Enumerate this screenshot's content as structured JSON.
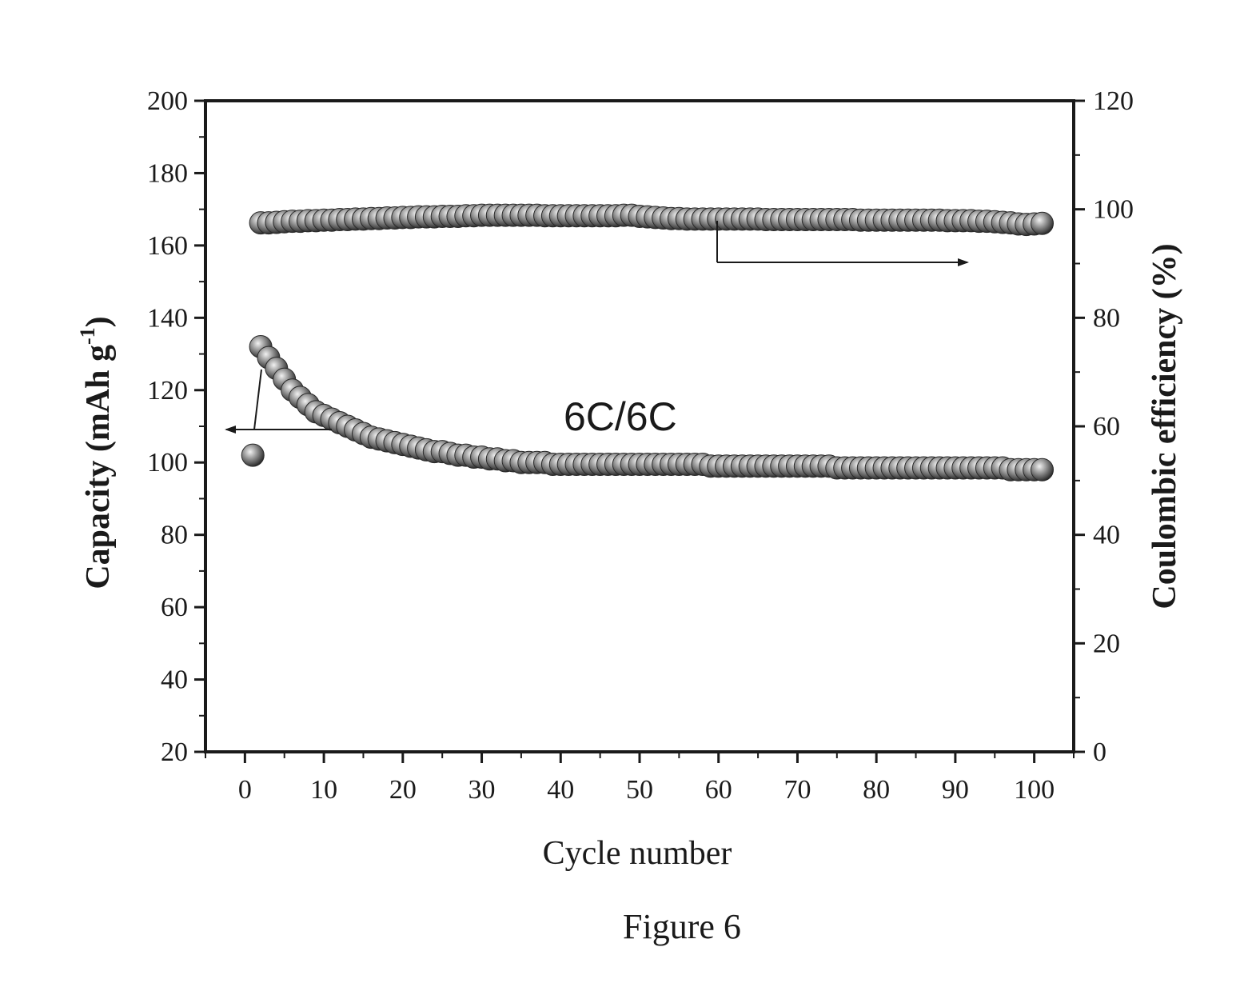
{
  "chart_data": {
    "type": "scatter",
    "xlabel": "Cycle number",
    "ylabel_left": "Capacity (mAh g",
    "ylabel_left_sup": "-1",
    "ylabel_left_close": ")",
    "ylabel_right": "Coulombic efficiency (%)",
    "xlim": [
      -5,
      105
    ],
    "ylim_left": [
      20,
      200
    ],
    "ylim_right": [
      0,
      120
    ],
    "x_ticks": [
      0,
      10,
      20,
      30,
      40,
      50,
      60,
      70,
      80,
      90,
      100
    ],
    "y_left_ticks": [
      20,
      40,
      60,
      80,
      100,
      120,
      140,
      160,
      180,
      200
    ],
    "y_right_ticks": [
      0,
      20,
      40,
      60,
      80,
      100,
      120
    ],
    "annotation": "6C/6C",
    "caption": "Figure 6",
    "marker_color": "#8a8a8a",
    "series": [
      {
        "axis": "left",
        "x": [
          2,
          3,
          4,
          5,
          6,
          7,
          8,
          9,
          10,
          11,
          12,
          13,
          14,
          15,
          16,
          17,
          18,
          19,
          20,
          21,
          22,
          23,
          24,
          25,
          26,
          27,
          28,
          29,
          30,
          31,
          32,
          33,
          34,
          35,
          36,
          37,
          38,
          39,
          40,
          41,
          42,
          43,
          44,
          45,
          46,
          47,
          48,
          49,
          50,
          51,
          52,
          53,
          54,
          55,
          56,
          57,
          58,
          59,
          60,
          61,
          62,
          63,
          64,
          65,
          66,
          67,
          68,
          69,
          70,
          71,
          72,
          73,
          74,
          75,
          76,
          77,
          78,
          79,
          80,
          81,
          82,
          83,
          84,
          85,
          86,
          87,
          88,
          89,
          90,
          91,
          92,
          93,
          94,
          95,
          96,
          97,
          98,
          99,
          100,
          101
        ],
        "y": [
          132,
          129,
          126,
          123,
          120,
          118,
          116,
          114,
          113,
          112,
          111,
          110,
          109,
          108,
          107,
          106.5,
          106,
          105.5,
          105,
          104.5,
          104,
          103.5,
          103,
          103,
          102.5,
          102,
          102,
          101.5,
          101.5,
          101,
          101,
          100.5,
          100.5,
          100,
          100,
          100,
          100,
          99.5,
          99.5,
          99.5,
          99.5,
          99.5,
          99.5,
          99.5,
          99.5,
          99.5,
          99.5,
          99.5,
          99.5,
          99.5,
          99.5,
          99.5,
          99.5,
          99.5,
          99.5,
          99.5,
          99.5,
          99,
          99,
          99,
          99,
          99,
          99,
          99,
          99,
          99,
          99,
          99,
          99,
          99,
          99,
          99,
          99,
          98.5,
          98.5,
          98.5,
          98.5,
          98.5,
          98.5,
          98.5,
          98.5,
          98.5,
          98.5,
          98.5,
          98.5,
          98.5,
          98.5,
          98.5,
          98.5,
          98.5,
          98.5,
          98.5,
          98.5,
          98.5,
          98.5,
          98,
          98,
          98,
          98,
          98
        ]
      },
      {
        "axis": "left",
        "x": [
          1
        ],
        "y": [
          102
        ]
      },
      {
        "axis": "right",
        "x": [
          2,
          3,
          4,
          5,
          6,
          7,
          8,
          9,
          10,
          11,
          12,
          13,
          14,
          15,
          16,
          17,
          18,
          19,
          20,
          21,
          22,
          23,
          24,
          25,
          26,
          27,
          28,
          29,
          30,
          31,
          32,
          33,
          34,
          35,
          36,
          37,
          38,
          39,
          40,
          41,
          42,
          43,
          44,
          45,
          46,
          47,
          48,
          49,
          50,
          51,
          52,
          53,
          54,
          55,
          56,
          57,
          58,
          59,
          60,
          61,
          62,
          63,
          64,
          65,
          66,
          67,
          68,
          69,
          70,
          71,
          72,
          73,
          74,
          75,
          76,
          77,
          78,
          79,
          80,
          81,
          82,
          83,
          84,
          85,
          86,
          87,
          88,
          89,
          90,
          91,
          92,
          93,
          94,
          95,
          96,
          97,
          98,
          99,
          100,
          101
        ],
        "y": [
          97.5,
          97.5,
          97.6,
          97.7,
          97.8,
          97.8,
          97.9,
          97.9,
          98,
          98,
          98.1,
          98.1,
          98.2,
          98.2,
          98.3,
          98.3,
          98.4,
          98.4,
          98.5,
          98.5,
          98.6,
          98.6,
          98.6,
          98.7,
          98.7,
          98.7,
          98.8,
          98.8,
          98.9,
          98.9,
          98.9,
          98.9,
          98.9,
          98.9,
          98.9,
          98.9,
          98.8,
          98.8,
          98.8,
          98.8,
          98.8,
          98.8,
          98.8,
          98.8,
          98.8,
          98.8,
          98.9,
          98.9,
          98.7,
          98.6,
          98.5,
          98.4,
          98.3,
          98.3,
          98.2,
          98.2,
          98.2,
          98.2,
          98.2,
          98.2,
          98.2,
          98.2,
          98.2,
          98.2,
          98.1,
          98.1,
          98.1,
          98.1,
          98.1,
          98.1,
          98.1,
          98.1,
          98.1,
          98.1,
          98.1,
          98.1,
          98,
          98,
          98,
          98,
          98,
          98,
          98,
          98,
          98,
          98,
          98,
          97.9,
          97.9,
          97.9,
          97.9,
          97.8,
          97.8,
          97.7,
          97.6,
          97.5,
          97.3,
          97.2,
          97.3,
          97.4
        ]
      }
    ]
  }
}
